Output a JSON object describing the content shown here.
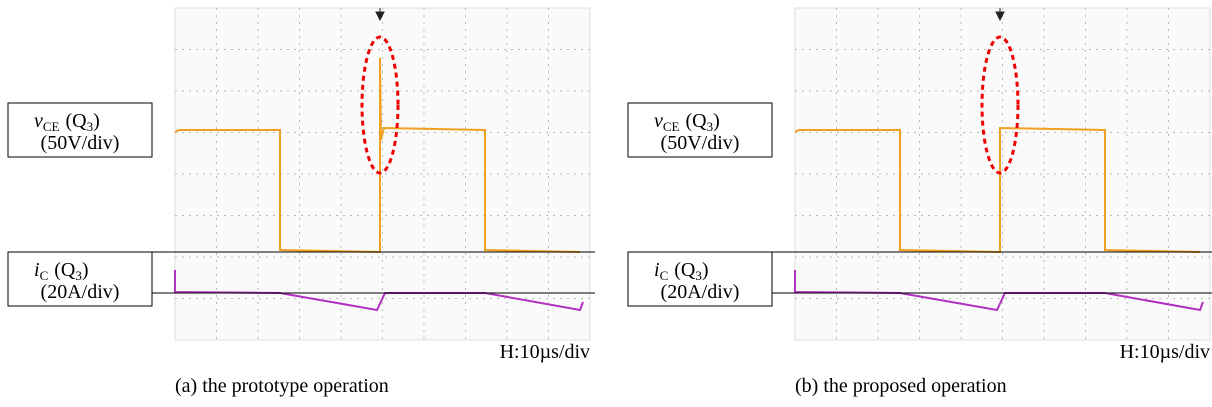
{
  "panels": [
    {
      "voltage_label": {
        "symbol": "v",
        "symbol_sub": "CE",
        "device": "(Q",
        "device_sub": "3",
        "device_end": ")",
        "scale": "(50V/div)"
      },
      "current_label": {
        "symbol": "i",
        "symbol_sub": "C",
        "device": "(Q",
        "device_sub": "3",
        "device_end": ")",
        "scale": "(20A/div)"
      },
      "time_scale": "H:10µs/div",
      "caption": "(a) the prototype operation"
    },
    {
      "voltage_label": {
        "symbol": "v",
        "symbol_sub": "CE",
        "device": "(Q",
        "device_sub": "3",
        "device_end": ")",
        "scale": "(50V/div)"
      },
      "current_label": {
        "symbol": "i",
        "symbol_sub": "C",
        "device": "(Q",
        "device_sub": "3",
        "device_end": ")",
        "scale": "(20A/div)"
      },
      "time_scale": "H:10µs/div",
      "caption": "(b) the proposed operation"
    }
  ]
}
